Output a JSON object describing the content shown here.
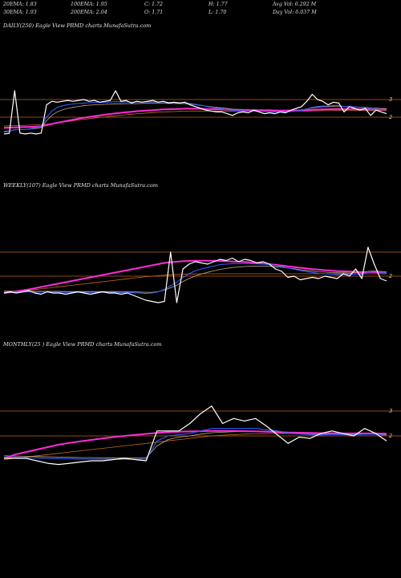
{
  "header": {
    "row1": [
      {
        "label": "20EMA: 1.83"
      },
      {
        "label": "100EMA: 1.95"
      },
      {
        "label": "C: 1.72"
      },
      {
        "label": "H: 1.77"
      },
      {
        "label": "Avg Vol: 6.292  M"
      }
    ],
    "row2": [
      {
        "label": "30EMA: 1.93"
      },
      {
        "label": "200EMA: 2.04"
      },
      {
        "label": "O: 1.71"
      },
      {
        "label": "L: 1.70"
      },
      {
        "label": "Day Vol: 6.037  M"
      }
    ]
  },
  "colors": {
    "background": "#000000",
    "price": "#ffffff",
    "ema_blue": "#2f5bff",
    "ema_magenta": "#ff2bd6",
    "ema_tan": "#c8a878",
    "ema_orange": "#c86a1a",
    "level_line": "#c06018",
    "text": "#e6e6e6"
  },
  "chart_data": [
    {
      "type": "line",
      "title": "DAILY(250) Eagle  View  PRMD charts MunafaSutra.com",
      "yticks": [
        {
          "value": 3,
          "label": "3"
        },
        {
          "value": 2,
          "label": "2"
        }
      ],
      "ylim": [
        0,
        6
      ],
      "level_lines": [
        3,
        2
      ],
      "series": [
        {
          "role": "price",
          "values": [
            1.05,
            1.08,
            3.5,
            1.1,
            1.05,
            1.1,
            1.05,
            1.1,
            2.7,
            2.9,
            2.85,
            2.9,
            2.95,
            2.9,
            2.95,
            3.0,
            2.9,
            2.95,
            2.85,
            2.9,
            2.95,
            3.5,
            2.9,
            2.95,
            2.8,
            2.9,
            2.85,
            2.9,
            2.95,
            2.85,
            2.9,
            2.8,
            2.85,
            2.8,
            2.85,
            2.7,
            2.6,
            2.5,
            2.4,
            2.35,
            2.3,
            2.3,
            2.2,
            2.1,
            2.25,
            2.3,
            2.25,
            2.4,
            2.3,
            2.2,
            2.25,
            2.2,
            2.3,
            2.25,
            2.4,
            2.5,
            2.6,
            2.9,
            3.3,
            3.0,
            2.9,
            2.7,
            2.85,
            2.8,
            2.3,
            2.6,
            2.5,
            2.4,
            2.5,
            2.1,
            2.4,
            2.3,
            2.2
          ]
        },
        {
          "role": "ema20",
          "values": [
            1.15,
            1.2,
            1.3,
            1.3,
            1.3,
            1.35,
            1.4,
            1.5,
            2.0,
            2.35,
            2.55,
            2.65,
            2.7,
            2.75,
            2.78,
            2.8,
            2.82,
            2.83,
            2.84,
            2.85,
            2.86,
            2.88,
            2.87,
            2.87,
            2.86,
            2.86,
            2.86,
            2.86,
            2.87,
            2.86,
            2.86,
            2.84,
            2.84,
            2.82,
            2.82,
            2.78,
            2.73,
            2.68,
            2.62,
            2.56,
            2.52,
            2.48,
            2.43,
            2.38,
            2.37,
            2.36,
            2.34,
            2.35,
            2.34,
            2.32,
            2.32,
            2.3,
            2.31,
            2.3,
            2.32,
            2.35,
            2.39,
            2.47,
            2.56,
            2.6,
            2.63,
            2.63,
            2.66,
            2.67,
            2.6,
            2.6,
            2.58,
            2.55,
            2.55,
            2.47,
            2.46,
            2.44,
            2.41
          ]
        },
        {
          "role": "ema30",
          "values": [
            1.2,
            1.22,
            1.28,
            1.3,
            1.3,
            1.33,
            1.36,
            1.42,
            1.8,
            2.1,
            2.3,
            2.42,
            2.5,
            2.56,
            2.61,
            2.65,
            2.68,
            2.7,
            2.71,
            2.73,
            2.74,
            2.76,
            2.76,
            2.77,
            2.77,
            2.77,
            2.78,
            2.78,
            2.79,
            2.79,
            2.79,
            2.78,
            2.78,
            2.77,
            2.77,
            2.74,
            2.71,
            2.67,
            2.63,
            2.59,
            2.56,
            2.53,
            2.5,
            2.46,
            2.45,
            2.44,
            2.42,
            2.42,
            2.41,
            2.4,
            2.39,
            2.38,
            2.38,
            2.37,
            2.38,
            2.39,
            2.42,
            2.47,
            2.53,
            2.56,
            2.59,
            2.59,
            2.62,
            2.63,
            2.6,
            2.6,
            2.59,
            2.57,
            2.57,
            2.52,
            2.51,
            2.5,
            2.48
          ]
        },
        {
          "role": "ema100",
          "values": [
            1.4,
            1.41,
            1.42,
            1.43,
            1.44,
            1.45,
            1.46,
            1.48,
            1.55,
            1.62,
            1.68,
            1.74,
            1.8,
            1.86,
            1.92,
            1.97,
            2.02,
            2.06,
            2.1,
            2.14,
            2.18,
            2.22,
            2.25,
            2.28,
            2.31,
            2.34,
            2.36,
            2.38,
            2.4,
            2.42,
            2.44,
            2.45,
            2.46,
            2.47,
            2.48,
            2.48,
            2.48,
            2.48,
            2.47,
            2.46,
            2.45,
            2.44,
            2.43,
            2.42,
            2.41,
            2.41,
            2.4,
            2.4,
            2.4,
            2.39,
            2.39,
            2.38,
            2.38,
            2.38,
            2.38,
            2.38,
            2.39,
            2.4,
            2.42,
            2.43,
            2.44,
            2.45,
            2.46,
            2.47,
            2.46,
            2.46,
            2.46,
            2.45,
            2.45,
            2.44,
            2.44,
            2.43,
            2.43
          ]
        },
        {
          "role": "ema200",
          "values": [
            1.5,
            1.51,
            1.52,
            1.53,
            1.54,
            1.55,
            1.56,
            1.57,
            1.6,
            1.64,
            1.68,
            1.72,
            1.76,
            1.8,
            1.84,
            1.88,
            1.92,
            1.95,
            1.99,
            2.02,
            2.05,
            2.08,
            2.11,
            2.14,
            2.17,
            2.2,
            2.22,
            2.24,
            2.26,
            2.28,
            2.3,
            2.31,
            2.32,
            2.33,
            2.34,
            2.35,
            2.35,
            2.35,
            2.35,
            2.35,
            2.35,
            2.35,
            2.35,
            2.34,
            2.34,
            2.34,
            2.34,
            2.34,
            2.34,
            2.34,
            2.34,
            2.34,
            2.34,
            2.34,
            2.34,
            2.34,
            2.35,
            2.35,
            2.36,
            2.36,
            2.37,
            2.37,
            2.38,
            2.38,
            2.38,
            2.38,
            2.38,
            2.38,
            2.38,
            2.38,
            2.38,
            2.38,
            2.38
          ]
        }
      ]
    },
    {
      "type": "line",
      "title": "WEEKLY(107) Eagle  View  PRMD charts MunafaSutra.com",
      "yticks": [
        {
          "value": 2,
          "label": "2"
        }
      ],
      "ylim": [
        0,
        6
      ],
      "level_lines": [
        3,
        2
      ],
      "series": [
        {
          "role": "price",
          "values": [
            1.3,
            1.35,
            1.3,
            1.35,
            1.4,
            1.3,
            1.25,
            1.35,
            1.3,
            1.3,
            1.25,
            1.3,
            1.35,
            1.3,
            1.25,
            1.3,
            1.35,
            1.3,
            1.3,
            1.25,
            1.3,
            1.2,
            1.1,
            1.0,
            0.95,
            0.9,
            0.95,
            3.0,
            0.9,
            2.3,
            2.5,
            2.6,
            2.55,
            2.5,
            2.6,
            2.7,
            2.65,
            2.75,
            2.6,
            2.7,
            2.65,
            2.55,
            2.6,
            2.5,
            2.3,
            2.2,
            1.95,
            2.0,
            1.85,
            1.9,
            1.95,
            1.9,
            2.0,
            1.95,
            1.9,
            2.1,
            2.0,
            2.3,
            1.9,
            3.2,
            2.5,
            1.9,
            1.8
          ]
        },
        {
          "role": "ema20",
          "values": [
            1.35,
            1.35,
            1.34,
            1.34,
            1.35,
            1.34,
            1.34,
            1.34,
            1.34,
            1.34,
            1.33,
            1.33,
            1.33,
            1.33,
            1.33,
            1.33,
            1.33,
            1.33,
            1.33,
            1.32,
            1.32,
            1.31,
            1.3,
            1.28,
            1.3,
            1.35,
            1.45,
            1.6,
            1.75,
            1.95,
            2.1,
            2.22,
            2.3,
            2.36,
            2.42,
            2.48,
            2.5,
            2.52,
            2.52,
            2.53,
            2.52,
            2.51,
            2.5,
            2.48,
            2.44,
            2.4,
            2.34,
            2.29,
            2.23,
            2.19,
            2.15,
            2.11,
            2.1,
            2.08,
            2.06,
            2.07,
            2.06,
            2.09,
            2.06,
            2.17,
            2.2,
            2.17,
            2.13
          ]
        },
        {
          "role": "ema30",
          "values": [
            1.38,
            1.38,
            1.37,
            1.37,
            1.37,
            1.37,
            1.37,
            1.37,
            1.37,
            1.37,
            1.36,
            1.36,
            1.36,
            1.36,
            1.36,
            1.36,
            1.36,
            1.36,
            1.36,
            1.36,
            1.36,
            1.35,
            1.34,
            1.33,
            1.33,
            1.36,
            1.42,
            1.52,
            1.62,
            1.78,
            1.9,
            2.01,
            2.09,
            2.16,
            2.22,
            2.28,
            2.32,
            2.36,
            2.38,
            2.4,
            2.41,
            2.41,
            2.41,
            2.41,
            2.39,
            2.37,
            2.34,
            2.31,
            2.27,
            2.24,
            2.21,
            2.18,
            2.17,
            2.15,
            2.14,
            2.14,
            2.13,
            2.15,
            2.13,
            2.2,
            2.22,
            2.2,
            2.18
          ]
        },
        {
          "role": "ema100",
          "values": [
            1.3,
            1.33,
            1.37,
            1.41,
            1.45,
            1.5,
            1.55,
            1.6,
            1.65,
            1.7,
            1.75,
            1.8,
            1.85,
            1.9,
            1.95,
            2.0,
            2.05,
            2.1,
            2.15,
            2.2,
            2.25,
            2.3,
            2.35,
            2.4,
            2.45,
            2.5,
            2.55,
            2.58,
            2.6,
            2.62,
            2.63,
            2.64,
            2.64,
            2.64,
            2.64,
            2.63,
            2.62,
            2.61,
            2.6,
            2.59,
            2.57,
            2.55,
            2.53,
            2.5,
            2.47,
            2.44,
            2.41,
            2.38,
            2.35,
            2.32,
            2.29,
            2.27,
            2.25,
            2.23,
            2.21,
            2.2,
            2.19,
            2.18,
            2.17,
            2.17,
            2.17,
            2.16,
            2.16
          ]
        },
        {
          "role": "ema200",
          "values": [
            1.3,
            1.32,
            1.35,
            1.38,
            1.41,
            1.44,
            1.47,
            1.5,
            1.53,
            1.56,
            1.59,
            1.62,
            1.65,
            1.68,
            1.71,
            1.74,
            1.77,
            1.8,
            1.83,
            1.86,
            1.89,
            1.92,
            1.95,
            1.98,
            2.0,
            2.02,
            2.04,
            2.06,
            2.07,
            2.08,
            2.09,
            2.09,
            2.1,
            2.1,
            2.1,
            2.1,
            2.1,
            2.1,
            2.1,
            2.1,
            2.1,
            2.1,
            2.1,
            2.1,
            2.1,
            2.1,
            2.1,
            2.1,
            2.1,
            2.1,
            2.1,
            2.1,
            2.1,
            2.1,
            2.1,
            2.1,
            2.1,
            2.1,
            2.1,
            2.1,
            2.1,
            2.1,
            2.1
          ]
        }
      ]
    },
    {
      "type": "line",
      "title": "MONTHLY(25                          ) Eagle  View  PRMD charts MunafaSutra.com",
      "yticks": [
        {
          "value": 3,
          "label": "3"
        },
        {
          "value": 2,
          "label": "2"
        }
      ],
      "ylim": [
        0,
        6
      ],
      "level_lines": [
        3,
        2
      ],
      "series": [
        {
          "role": "price",
          "values": [
            1.1,
            1.1,
            1.1,
            1.0,
            0.9,
            0.85,
            0.9,
            0.95,
            1.0,
            1.0,
            1.05,
            1.1,
            1.05,
            1.0,
            2.2,
            2.2,
            2.2,
            2.5,
            2.9,
            3.2,
            2.5,
            2.7,
            2.6,
            2.7,
            2.4,
            2.05,
            1.7,
            1.95,
            1.9,
            2.1,
            2.2,
            2.1,
            2.0,
            2.3,
            2.1,
            1.8
          ]
        },
        {
          "role": "ema20",
          "values": [
            1.15,
            1.14,
            1.13,
            1.12,
            1.1,
            1.09,
            1.08,
            1.07,
            1.07,
            1.06,
            1.06,
            1.06,
            1.06,
            1.06,
            1.8,
            2.0,
            2.05,
            2.1,
            2.2,
            2.3,
            2.3,
            2.3,
            2.3,
            2.3,
            2.25,
            2.2,
            2.12,
            2.08,
            2.05,
            2.04,
            2.06,
            2.05,
            2.04,
            2.07,
            2.06,
            2.02
          ]
        },
        {
          "role": "ema30",
          "values": [
            1.2,
            1.19,
            1.18,
            1.17,
            1.16,
            1.15,
            1.14,
            1.13,
            1.13,
            1.12,
            1.12,
            1.12,
            1.12,
            1.12,
            1.6,
            1.85,
            1.95,
            2.0,
            2.07,
            2.13,
            2.15,
            2.17,
            2.18,
            2.19,
            2.17,
            2.14,
            2.1,
            2.08,
            2.06,
            2.06,
            2.07,
            2.06,
            2.06,
            2.08,
            2.07,
            2.05
          ]
        },
        {
          "role": "ema100",
          "values": [
            1.1,
            1.25,
            1.35,
            1.45,
            1.55,
            1.65,
            1.72,
            1.78,
            1.84,
            1.9,
            1.95,
            2.0,
            2.04,
            2.08,
            2.12,
            2.15,
            2.17,
            2.18,
            2.19,
            2.2,
            2.2,
            2.2,
            2.19,
            2.18,
            2.17,
            2.16,
            2.14,
            2.13,
            2.12,
            2.11,
            2.11,
            2.1,
            2.1,
            2.1,
            2.1,
            2.09
          ]
        },
        {
          "role": "ema200",
          "values": [
            1.05,
            1.1,
            1.15,
            1.2,
            1.25,
            1.3,
            1.35,
            1.4,
            1.45,
            1.5,
            1.55,
            1.6,
            1.65,
            1.7,
            1.75,
            1.8,
            1.85,
            1.9,
            1.95,
            2.0,
            2.03,
            2.05,
            2.07,
            2.08,
            2.09,
            2.1,
            2.1,
            2.1,
            2.1,
            2.1,
            2.1,
            2.1,
            2.1,
            2.1,
            2.1,
            2.1
          ]
        }
      ]
    }
  ]
}
